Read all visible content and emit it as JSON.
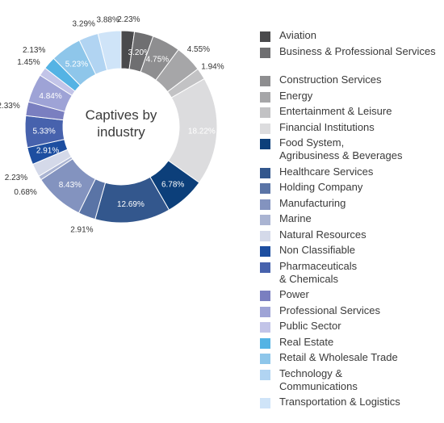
{
  "chart_data": {
    "type": "pie",
    "title": "Captives by industry",
    "categories": [
      "Aviation",
      "Business & Professional Services",
      "Construction Services",
      "Energy",
      "Entertainment & Leisure",
      "Financial Institutions",
      "Food System, Agribusiness & Beverages",
      "Healthcare Services",
      "Holding Company",
      "Manufacturing",
      "Marine",
      "Natural Resources",
      "Non Classifiable",
      "Pharmaceuticals & Chemicals",
      "Power",
      "Professional Services",
      "Public Sector",
      "Real Estate",
      "Retail & Wholesale Trade",
      "Technology & Communications",
      "Transportation & Logistics"
    ],
    "values": [
      2.23,
      3.2,
      4.75,
      4.55,
      1.94,
      18.22,
      6.78,
      12.69,
      2.91,
      8.43,
      0.68,
      2.23,
      2.91,
      5.33,
      2.33,
      4.84,
      1.45,
      2.13,
      5.23,
      3.29,
      3.88
    ],
    "value_labels": [
      "2.23%",
      "3.20%",
      "4.75%",
      "4.55%",
      "1.94%",
      "18.22%",
      "6.78%",
      "12.69%",
      "2.91%",
      "8.43%",
      "0.68%",
      "2.23%",
      "2.91%",
      "5.33%",
      "2.33%",
      "4.84%",
      "1.45%",
      "2.13%",
      "5.23%",
      "3.29%",
      "3.88%"
    ],
    "colors": [
      "#4a4a4c",
      "#6f6f71",
      "#8e8e90",
      "#a6a6a8",
      "#c2c2c4",
      "#dcdcde",
      "#0c3f7a",
      "#33578d",
      "#5a74a6",
      "#8393bf",
      "#aab4d2",
      "#d4d9e9",
      "#1d4ea0",
      "#4762ad",
      "#7a7fc0",
      "#9ea3d6",
      "#c2c4e8",
      "#54b3e4",
      "#8ec6ea",
      "#b1d4f2",
      "#cfe4f8"
    ],
    "legend": "right",
    "donut": true
  }
}
